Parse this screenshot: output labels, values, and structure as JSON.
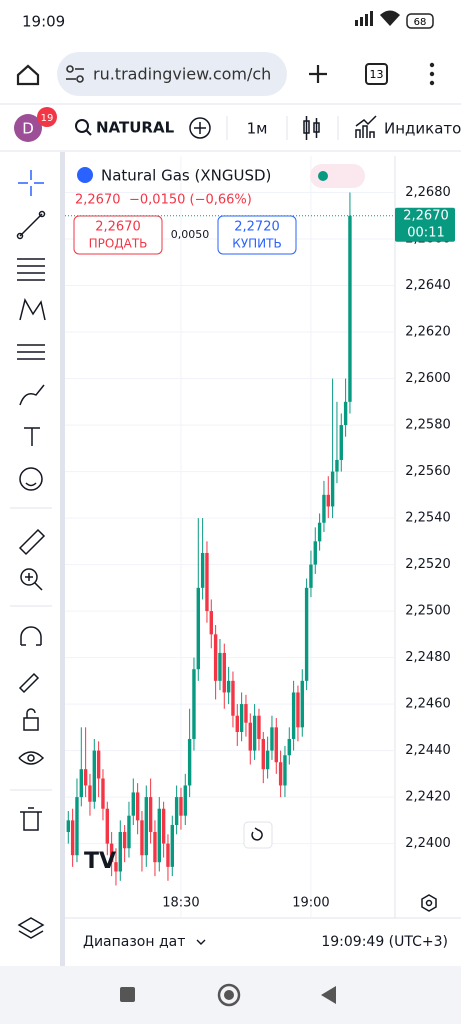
{
  "status_bar": {
    "time": "19:09",
    "battery": "68"
  },
  "browser": {
    "url": "ru.tradingview.com/ch",
    "tabs": "13"
  },
  "toolbar": {
    "avatar": "D",
    "badge": "19",
    "symbol": "NATURAL",
    "interval": "1м",
    "indicators": "Индикато"
  },
  "legend": {
    "title": "Natural Gas (XNGUSD)",
    "price": "2,2670",
    "change": "−0,0150 (−0,66%)"
  },
  "trade": {
    "sell_price": "2,2670",
    "sell": "ПРОДАТЬ",
    "spread": "0,0050",
    "buy_price": "2,2720",
    "buy": "КУПИТЬ"
  },
  "footer": {
    "range": "Диапазон дат",
    "clock": "19:09:49 (UTC+3)"
  },
  "chart": {
    "type": "candlestick",
    "up_color": "#089981",
    "down_color": "#f23645",
    "x": [
      "18:04",
      "18:05",
      "18:06",
      "18:07",
      "18:08",
      "18:09",
      "18:10",
      "18:11",
      "18:12",
      "18:13",
      "18:14",
      "18:15",
      "18:16",
      "18:17",
      "18:18",
      "18:19",
      "18:20",
      "18:21",
      "18:22",
      "18:23",
      "18:24",
      "18:25",
      "18:26",
      "18:27",
      "18:28",
      "18:29",
      "18:30",
      "18:31",
      "18:32",
      "18:33",
      "18:34",
      "18:35",
      "18:36",
      "18:37",
      "18:38",
      "18:39",
      "18:40",
      "18:41",
      "18:42",
      "18:43",
      "18:44",
      "18:45",
      "18:46",
      "18:47",
      "18:48",
      "18:49",
      "18:50",
      "18:51",
      "18:52",
      "18:53",
      "18:54",
      "18:55",
      "18:56",
      "18:57",
      "18:58",
      "18:59",
      "19:00",
      "19:01",
      "19:02",
      "19:03",
      "19:04",
      "19:05",
      "19:06",
      "19:07",
      "19:08",
      "19:09"
    ],
    "open": [
      2.2405,
      2.241,
      2.2395,
      2.242,
      2.2432,
      2.2425,
      2.2418,
      2.244,
      2.2428,
      2.2415,
      2.24,
      2.2392,
      2.2388,
      2.2405,
      2.2398,
      2.2412,
      2.2422,
      2.241,
      2.2395,
      2.242,
      2.2405,
      2.2392,
      2.2415,
      2.24,
      2.239,
      2.2408,
      2.242,
      2.2412,
      2.2425,
      2.2445,
      2.2475,
      2.251,
      2.2525,
      2.25,
      2.249,
      2.247,
      2.2482,
      2.2465,
      2.247,
      2.2455,
      2.2448,
      2.246,
      2.2452,
      2.244,
      2.2455,
      2.2445,
      2.2432,
      2.244,
      2.245,
      2.2435,
      2.2425,
      2.2438,
      2.2445,
      2.2465,
      2.245,
      2.247,
      2.251,
      2.252,
      2.253,
      2.2538,
      2.255,
      2.2545,
      2.256,
      2.2565,
      2.258,
      2.259
    ],
    "high": [
      2.2414,
      2.2415,
      2.2428,
      2.245,
      2.245,
      2.243,
      2.2445,
      2.2444,
      2.2432,
      2.2418,
      2.2405,
      2.2398,
      2.241,
      2.2408,
      2.2418,
      2.2428,
      2.2426,
      2.2414,
      2.2425,
      2.2428,
      2.241,
      2.242,
      2.2418,
      2.2404,
      2.2412,
      2.2425,
      2.2424,
      2.243,
      2.2458,
      2.248,
      2.254,
      2.254,
      2.253,
      2.2505,
      2.2494,
      2.2488,
      2.2486,
      2.2476,
      2.2474,
      2.246,
      2.2465,
      2.2464,
      2.2456,
      2.246,
      2.2458,
      2.2448,
      2.2446,
      2.2455,
      2.2454,
      2.244,
      2.2442,
      2.245,
      2.247,
      2.2468,
      2.2475,
      2.2514,
      2.2526,
      2.2536,
      2.2542,
      2.2556,
      2.2558,
      2.26,
      2.259,
      2.2585,
      2.26,
      2.268
    ],
    "low": [
      2.24,
      2.239,
      2.2392,
      2.2416,
      2.242,
      2.2412,
      2.2415,
      2.242,
      2.241,
      2.2395,
      2.2386,
      2.2382,
      2.2384,
      2.2392,
      2.2394,
      2.2408,
      2.2404,
      2.2388,
      2.239,
      2.24,
      2.2386,
      2.2388,
      2.2394,
      2.2384,
      2.2386,
      2.2404,
      2.2406,
      2.2408,
      2.242,
      2.244,
      2.247,
      2.2505,
      2.2495,
      2.2484,
      2.2462,
      2.2466,
      2.2458,
      2.246,
      2.245,
      2.2442,
      2.2444,
      2.2446,
      2.2434,
      2.2436,
      2.244,
      2.2426,
      2.2428,
      2.2436,
      2.243,
      2.242,
      2.242,
      2.2434,
      2.244,
      2.2444,
      2.2446,
      2.2466,
      2.2506,
      2.2516,
      2.2526,
      2.2534,
      2.254,
      2.254,
      2.2555,
      2.256,
      2.2575,
      2.2585
    ],
    "close": [
      2.241,
      2.2395,
      2.242,
      2.2432,
      2.2425,
      2.2418,
      2.244,
      2.2428,
      2.2415,
      2.24,
      2.2392,
      2.2388,
      2.2405,
      2.2398,
      2.2412,
      2.2422,
      2.241,
      2.2395,
      2.242,
      2.2405,
      2.2392,
      2.2415,
      2.24,
      2.239,
      2.2408,
      2.242,
      2.2412,
      2.2425,
      2.2445,
      2.2475,
      2.251,
      2.2525,
      2.25,
      2.249,
      2.247,
      2.2482,
      2.2465,
      2.247,
      2.2455,
      2.2448,
      2.246,
      2.2452,
      2.244,
      2.2455,
      2.2445,
      2.2432,
      2.244,
      2.245,
      2.2435,
      2.2425,
      2.2438,
      2.2445,
      2.2465,
      2.245,
      2.247,
      2.251,
      2.252,
      2.253,
      2.2538,
      2.255,
      2.2545,
      2.256,
      2.2565,
      2.258,
      2.259,
      2.267
    ],
    "ylim": [
      2.2368,
      2.2694
    ],
    "yticks": [
      {
        "value": 2.24,
        "label": "2,2400"
      },
      {
        "value": 2.242,
        "label": "2,2420"
      },
      {
        "value": 2.244,
        "label": "2,2440"
      },
      {
        "value": 2.246,
        "label": "2,2460"
      },
      {
        "value": 2.248,
        "label": "2,2480"
      },
      {
        "value": 2.25,
        "label": "2,2500"
      },
      {
        "value": 2.252,
        "label": "2,2520"
      },
      {
        "value": 2.254,
        "label": "2,2540"
      },
      {
        "value": 2.256,
        "label": "2,2560"
      },
      {
        "value": 2.258,
        "label": "2,2580"
      },
      {
        "value": 2.26,
        "label": "2,2600"
      },
      {
        "value": 2.262,
        "label": "2,2620"
      },
      {
        "value": 2.264,
        "label": "2,2640"
      },
      {
        "value": 2.266,
        "label": "2,2660"
      },
      {
        "value": 2.268,
        "label": "2,2680"
      }
    ],
    "xticks": [
      "18:30",
      "19:00"
    ],
    "grid": true,
    "last_price": {
      "value": 2.267,
      "label": "2,2670",
      "timer": "00:11"
    }
  }
}
